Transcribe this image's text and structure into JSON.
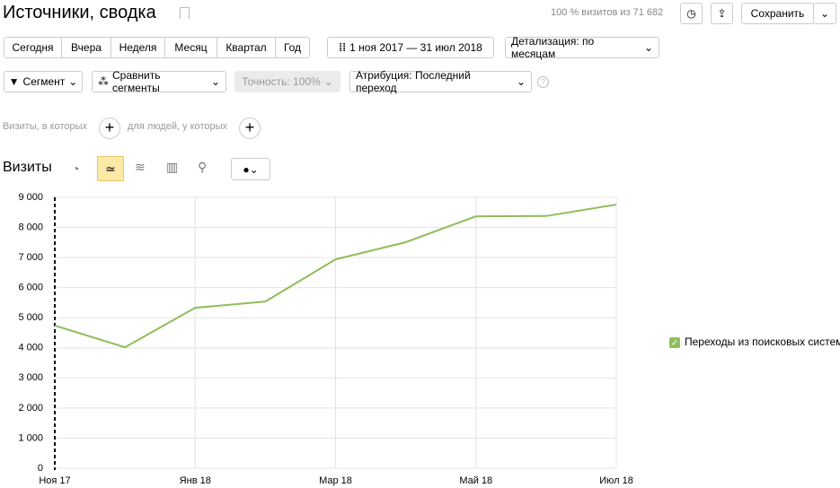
{
  "header": {
    "title": "Источники, сводка",
    "visits_info": "100 % визитов из 71 682",
    "save": "Сохранить"
  },
  "periods": [
    "Сегодня",
    "Вчера",
    "Неделя",
    "Месяц",
    "Квартал",
    "Год"
  ],
  "date_range": "1 ноя 2017 — 31 июл 2018",
  "detail": "Детализация: по месяцам",
  "filters": {
    "segment": "Сегмент",
    "compare": "Сравнить сегменты",
    "accuracy": "Точность: 100%",
    "attribution": "Атрибуция: Последний переход"
  },
  "conditions": {
    "visits": "Визиты, в которых",
    "people": "для людей, у которых"
  },
  "chart_data": {
    "type": "line",
    "title": "Визиты",
    "categories": [
      "Ноя 17",
      null,
      "Янв 18",
      null,
      "Мар 18",
      null,
      "Май 18",
      null,
      "Июл 18"
    ],
    "series": [
      {
        "name": "Переходы из поисковых систем",
        "color": "#8fbd5a",
        "values": [
          4740,
          4020,
          5330,
          5540,
          6940,
          7510,
          8370,
          8380,
          8760
        ]
      }
    ],
    "ylim": [
      0,
      9000
    ],
    "yticks": [
      0,
      {
        "value": 1000,
        "label": "1 000"
      },
      {
        "value": 2000,
        "label": "2 000"
      },
      {
        "value": 3000,
        "label": "3 000"
      },
      {
        "value": 4000,
        "label": "4 000"
      },
      {
        "value": 5000,
        "label": "5 000"
      },
      {
        "value": 6000,
        "label": "6 000"
      },
      {
        "value": 7000,
        "label": "7 000"
      },
      {
        "value": 8000,
        "label": "8 000"
      },
      {
        "value": 9000,
        "label": "9 000"
      }
    ],
    "grid": true,
    "legend": "right"
  }
}
